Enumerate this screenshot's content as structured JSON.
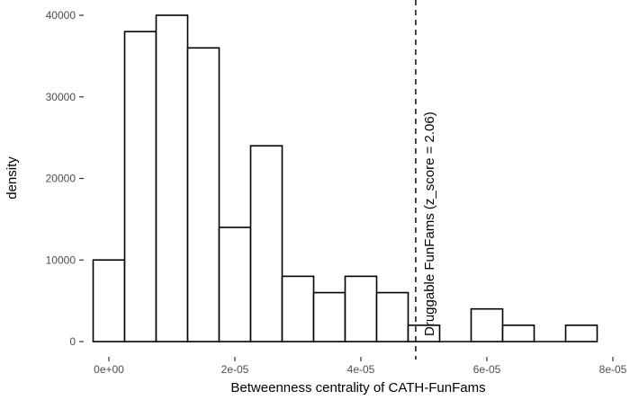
{
  "chart_data": {
    "type": "bar",
    "subtype": "histogram",
    "title": "",
    "xlabel": "Betweenness centrality of CATH-FunFams",
    "ylabel": "density",
    "bin_width": 5e-06,
    "bin_centers": [
      0,
      5e-06,
      1e-05,
      1.5e-05,
      2e-05,
      2.5e-05,
      3e-05,
      3.5e-05,
      4e-05,
      4.5e-05,
      5e-05,
      5.5e-05,
      6e-05,
      6.5e-05,
      7e-05,
      7.5e-05
    ],
    "values": [
      10000,
      38000,
      40000,
      36000,
      14000,
      24000,
      8000,
      6000,
      8000,
      6000,
      2000,
      0,
      4000,
      2000,
      0,
      2000
    ],
    "xlim": [
      -3.5e-06,
      8e-05
    ],
    "ylim": [
      0,
      41000
    ],
    "x_ticks": [
      "0e+00",
      "2e-05",
      "4e-05",
      "6e-05",
      "8e-05"
    ],
    "y_ticks": [
      "0",
      "10000",
      "20000",
      "30000",
      "40000"
    ],
    "grid": false,
    "vline": {
      "x": 4.87e-05,
      "style": "dashed",
      "label": "Druggable FunFams (z_score = 2.06)"
    },
    "colors": {
      "bar_fill": "#ffffff",
      "bar_stroke": "#000000",
      "vline": "#000000"
    }
  }
}
